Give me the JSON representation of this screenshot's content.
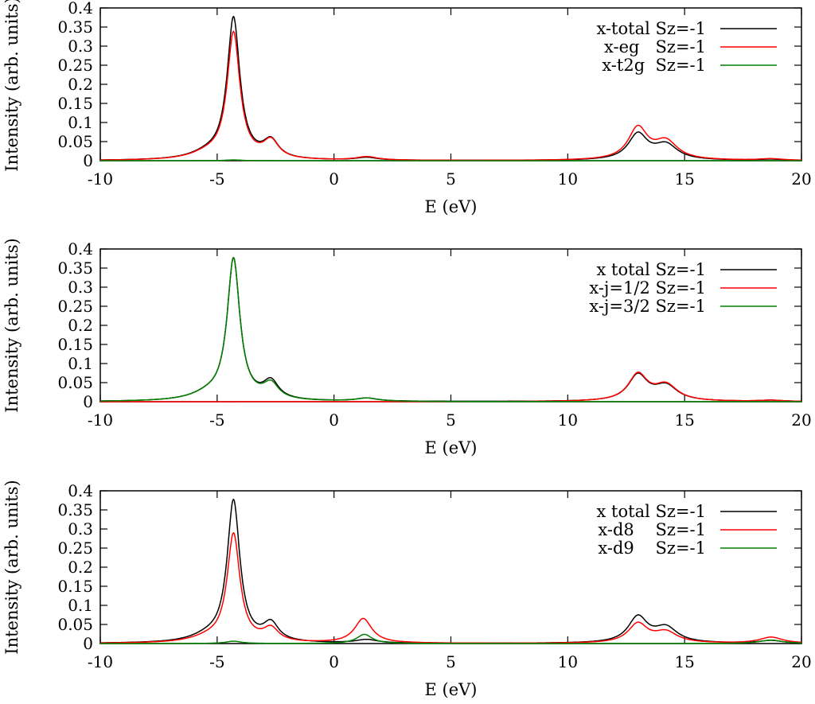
{
  "colors": {
    "total": "#000000",
    "red": "#ff0000",
    "green": "#008000"
  },
  "chart_data": [
    {
      "type": "line",
      "xlabel": "E (eV)",
      "ylabel": "Intensity (arb. units)",
      "xlim": [
        -10,
        20
      ],
      "ylim": [
        0,
        0.4
      ],
      "xticks": [
        "-10",
        "-5",
        "0",
        "5",
        "10",
        "15",
        "20"
      ],
      "yticks": [
        "0",
        "0.05",
        "0.1",
        "0.15",
        "0.2",
        "0.25",
        "0.3",
        "0.35",
        "0.4"
      ],
      "grid": false,
      "legend": "top-right",
      "series": [
        {
          "name": "x-total Sz=-1",
          "color": "#000000",
          "peaks": [
            [
              -4.3,
              0.369,
              0.33
            ],
            [
              -2.7,
              0.046,
              0.4
            ],
            [
              -5.4,
              0.015,
              0.9
            ],
            [
              1.4,
              0.007,
              0.55
            ],
            [
              13.0,
              0.067,
              0.5
            ],
            [
              14.2,
              0.039,
              0.6
            ],
            [
              18.7,
              0.003,
              0.6
            ]
          ]
        },
        {
          "name": "x-eg   Sz=-1",
          "color": "#ff0000",
          "peaks": [
            [
              -4.3,
              0.33,
              0.33
            ],
            [
              -2.7,
              0.046,
              0.4
            ],
            [
              -5.4,
              0.015,
              0.9
            ],
            [
              1.4,
              0.009,
              0.55
            ],
            [
              13.0,
              0.083,
              0.5
            ],
            [
              14.2,
              0.047,
              0.6
            ],
            [
              18.7,
              0.004,
              0.6
            ]
          ]
        },
        {
          "name": "x-t2g  Sz=-1",
          "color": "#008000",
          "peaks": [
            [
              -4.3,
              0.002,
              0.4
            ]
          ]
        }
      ]
    },
    {
      "type": "line",
      "xlabel": "E (eV)",
      "ylabel": "Intensity (arb. units)",
      "xlim": [
        -10,
        20
      ],
      "ylim": [
        0,
        0.4
      ],
      "xticks": [
        "-10",
        "-5",
        "0",
        "5",
        "10",
        "15",
        "20"
      ],
      "yticks": [
        "0",
        "0.05",
        "0.1",
        "0.15",
        "0.2",
        "0.25",
        "0.3",
        "0.35",
        "0.4"
      ],
      "grid": false,
      "legend": "top-right",
      "series": [
        {
          "name": "x total Sz=-1",
          "color": "#000000",
          "peaks": [
            [
              -4.3,
              0.369,
              0.33
            ],
            [
              -2.7,
              0.046,
              0.4
            ],
            [
              -5.4,
              0.015,
              0.9
            ],
            [
              1.4,
              0.008,
              0.55
            ],
            [
              13.0,
              0.067,
              0.5
            ],
            [
              14.2,
              0.039,
              0.6
            ],
            [
              18.7,
              0.003,
              0.6
            ]
          ]
        },
        {
          "name": "x-j=1/2 Sz=-1",
          "color": "#ff0000",
          "peaks": [
            [
              13.0,
              0.069,
              0.5
            ],
            [
              14.2,
              0.041,
              0.6
            ],
            [
              18.7,
              0.003,
              0.6
            ]
          ]
        },
        {
          "name": "x-j=3/2 Sz=-1",
          "color": "#008000",
          "peaks": [
            [
              -4.3,
              0.369,
              0.33
            ],
            [
              -2.7,
              0.04,
              0.4
            ],
            [
              -5.4,
              0.015,
              0.9
            ],
            [
              1.4,
              0.008,
              0.55
            ]
          ]
        }
      ]
    },
    {
      "type": "line",
      "xlabel": "E (eV)",
      "ylabel": "Intensity (arb. units)",
      "xlim": [
        -10,
        20
      ],
      "ylim": [
        0,
        0.4
      ],
      "xticks": [
        "-10",
        "-5",
        "0",
        "5",
        "10",
        "15",
        "20"
      ],
      "yticks": [
        "0",
        "0.05",
        "0.1",
        "0.15",
        "0.2",
        "0.25",
        "0.3",
        "0.35",
        "0.4"
      ],
      "grid": false,
      "legend": "top-right",
      "series": [
        {
          "name": "x total Sz=-1",
          "color": "#000000",
          "peaks": [
            [
              -4.3,
              0.369,
              0.33
            ],
            [
              -2.7,
              0.046,
              0.4
            ],
            [
              -5.4,
              0.015,
              0.9
            ],
            [
              1.4,
              0.009,
              0.55
            ],
            [
              13.0,
              0.067,
              0.5
            ],
            [
              14.2,
              0.039,
              0.6
            ],
            [
              18.7,
              0.007,
              0.6
            ]
          ]
        },
        {
          "name": "x-d8    Sz=-1",
          "color": "#ff0000",
          "peaks": [
            [
              -4.3,
              0.283,
              0.33
            ],
            [
              -2.7,
              0.034,
              0.4
            ],
            [
              -5.4,
              0.012,
              0.9
            ],
            [
              1.25,
              0.064,
              0.45
            ],
            [
              13.0,
              0.05,
              0.5
            ],
            [
              14.2,
              0.028,
              0.6
            ],
            [
              18.7,
              0.016,
              0.6
            ]
          ]
        },
        {
          "name": "x-d9    Sz=-1",
          "color": "#008000",
          "peaks": [
            [
              -4.3,
              0.006,
              0.4
            ],
            [
              1.3,
              0.024,
              0.4
            ],
            [
              18.7,
              0.009,
              0.6
            ]
          ]
        }
      ]
    }
  ]
}
